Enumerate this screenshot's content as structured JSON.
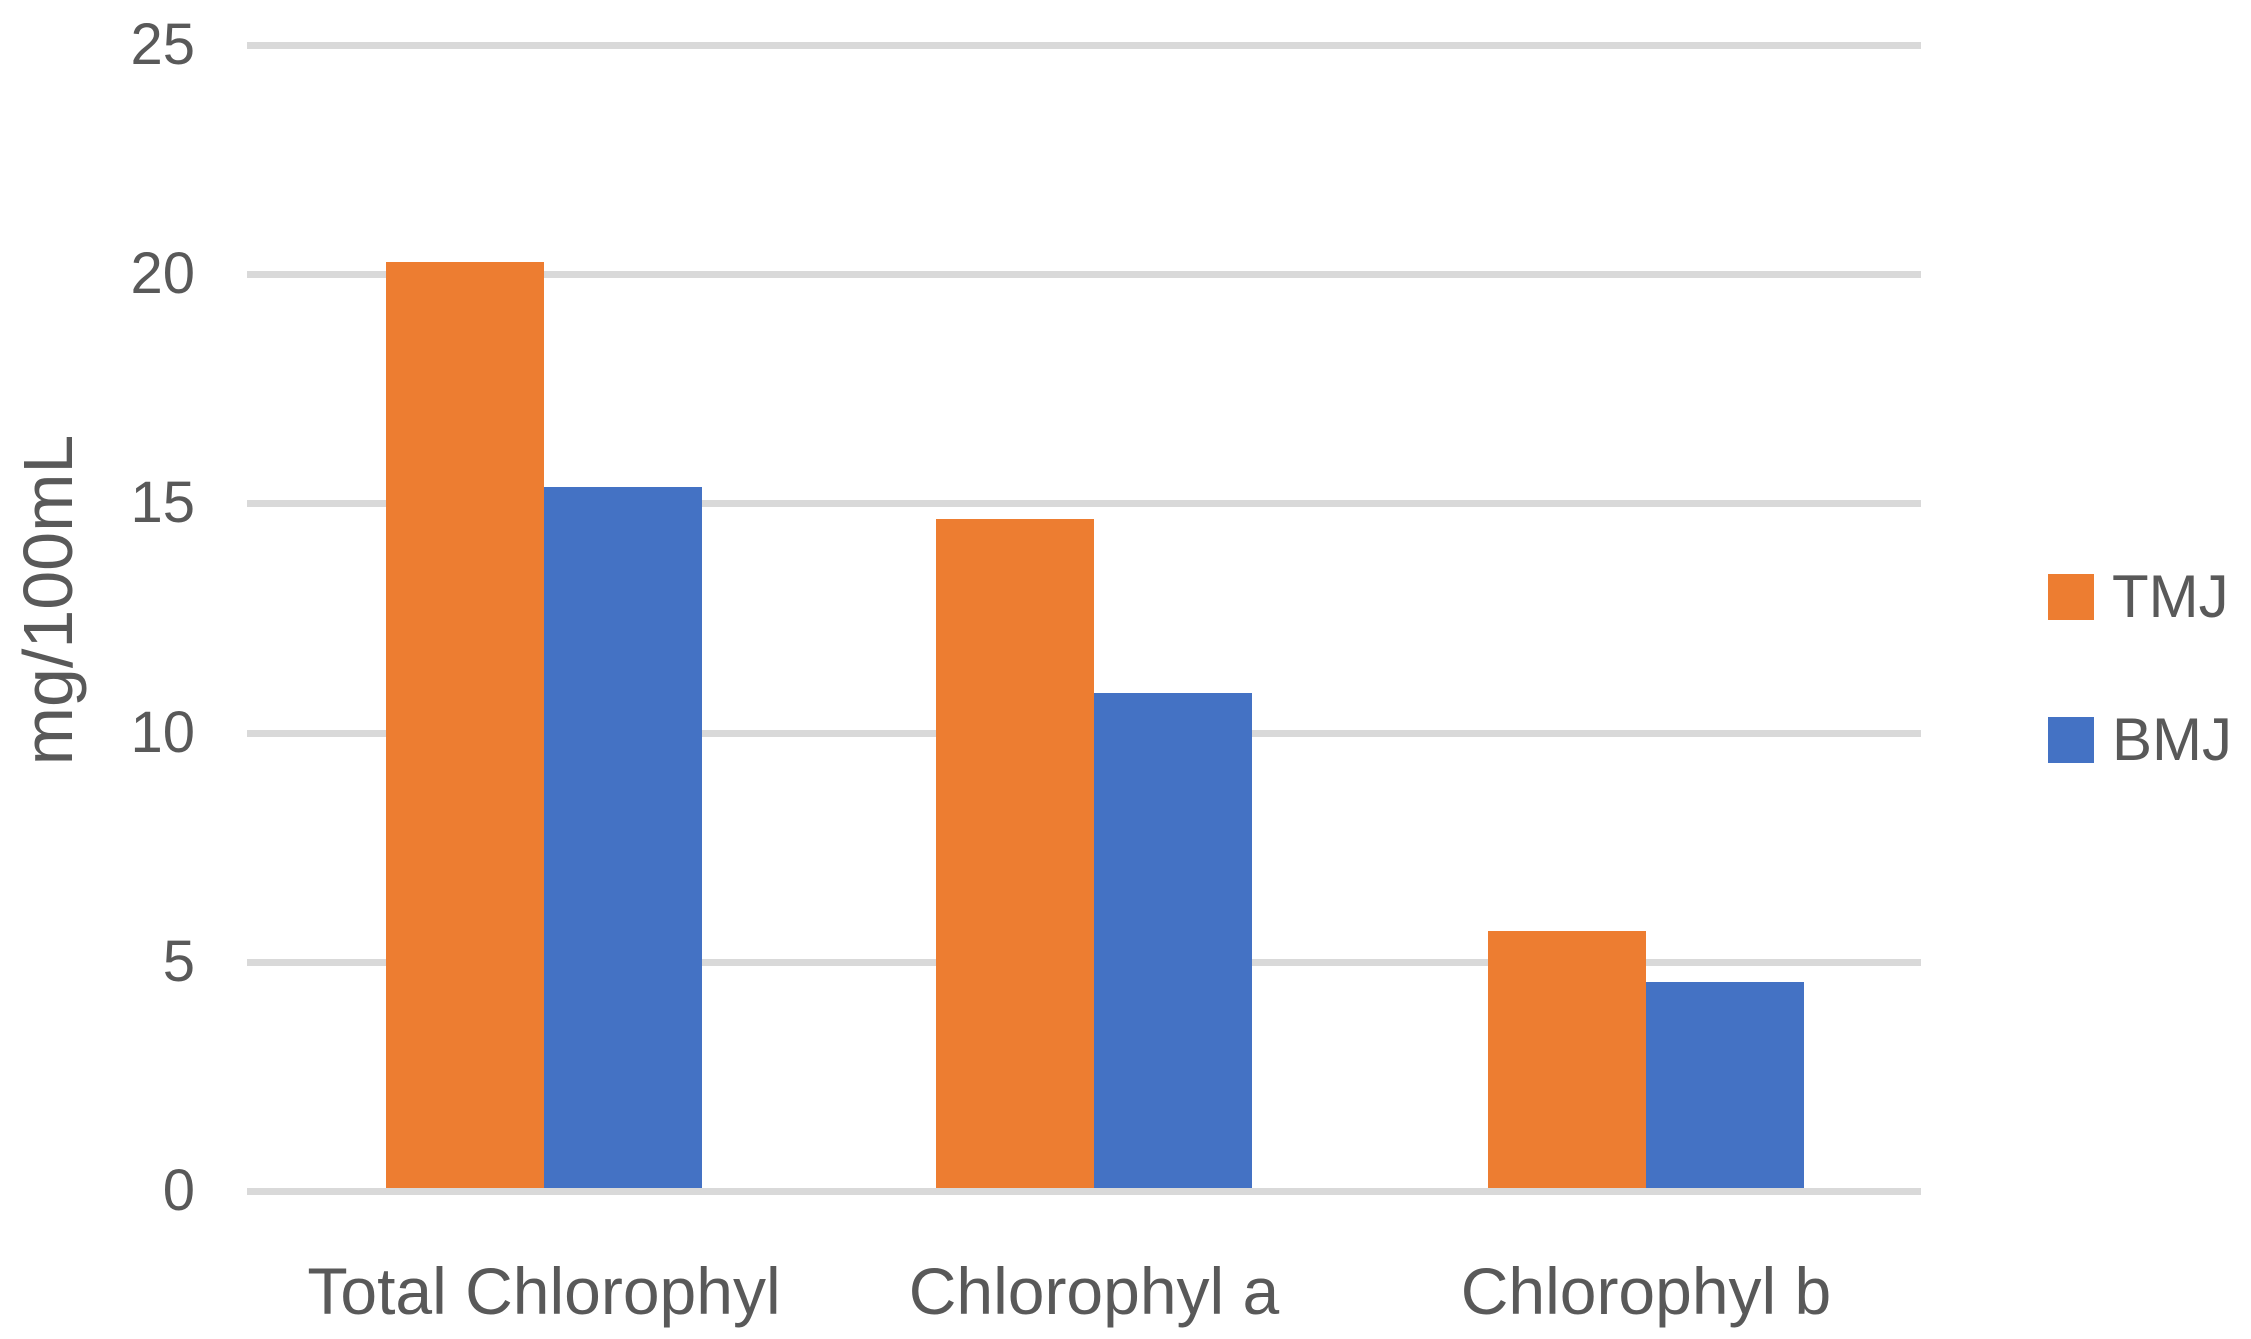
{
  "chart_data": {
    "type": "bar",
    "title": "",
    "categories": [
      "Total Chlorophyl",
      "Chlorophyl a",
      "Chlorophyl b"
    ],
    "series": [
      {
        "name": "TMJ",
        "color": "#ED7D31",
        "values": [
          20.2,
          14.6,
          5.6
        ]
      },
      {
        "name": "BMJ",
        "color": "#4472C4",
        "values": [
          15.3,
          10.8,
          4.5
        ]
      }
    ],
    "xlabel": "",
    "ylabel": "mg/100mL",
    "ylim": [
      0,
      25
    ],
    "yticks": [
      0,
      5,
      10,
      15,
      20,
      25
    ],
    "grid": true,
    "legend_position": "right",
    "colors": {
      "gridline": "#D9D9D9",
      "axis_text": "#595959",
      "background": "#FFFFFF"
    }
  }
}
